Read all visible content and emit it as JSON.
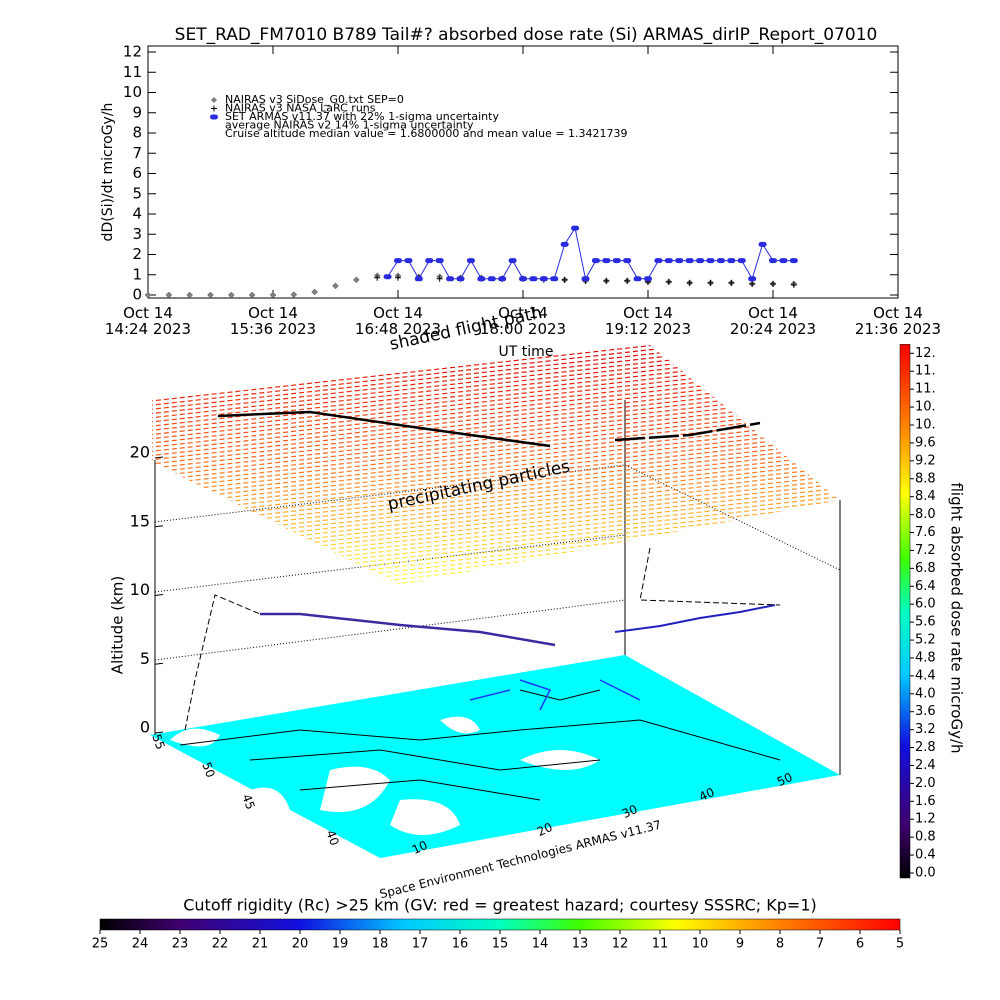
{
  "chart_data": [
    {
      "type": "line",
      "title": "SET_RAD_FM7010  B789 Tail#? absorbed dose rate (Si) ARMAS_dirIP_Report_07010",
      "ylabel": "dD(Si)/dt microGy/h",
      "xlabel": "UT time",
      "xlim": [
        14.4,
        21.6
      ],
      "xticks": [
        {
          "value": 14.4,
          "label": "Oct 14\n14:24 2023"
        },
        {
          "value": 15.6,
          "label": "Oct 14\n15:36 2023"
        },
        {
          "value": 16.8,
          "label": "Oct 14\n16:48 2023"
        },
        {
          "value": 18.0,
          "label": "Oct 14\n18:00 2023"
        },
        {
          "value": 19.2,
          "label": "Oct 14\n19:12 2023"
        },
        {
          "value": 20.4,
          "label": "Oct 14\n20:24 2023"
        },
        {
          "value": 21.6,
          "label": "Oct 14\n21:36 2023"
        }
      ],
      "ylim": [
        0,
        12
      ],
      "yticks": [
        0,
        1,
        2,
        3,
        4,
        5,
        6,
        7,
        8,
        9,
        10,
        11,
        12
      ],
      "series": [
        {
          "name": "NAIRAS v3 SiDose_G0.txt SEP=0",
          "color": "#808080",
          "marker": "diamond",
          "x": [
            14.4,
            14.6,
            14.8,
            15.0,
            15.2,
            15.4,
            15.6,
            15.8,
            16.0,
            16.2,
            16.4,
            16.6,
            16.8,
            17.0,
            17.2,
            17.4,
            17.6,
            17.8,
            18.0,
            18.2,
            18.4,
            18.6,
            18.8,
            19.0,
            19.2,
            19.4,
            19.6,
            19.8,
            20.0,
            20.2,
            20.4,
            20.6
          ],
          "values": [
            0,
            0,
            0,
            0,
            0,
            0,
            0,
            0.02,
            0.15,
            0.45,
            0.75,
            0.95,
            0.95,
            0.9,
            0.9,
            0.85,
            0.85,
            0.8,
            0.8,
            0.8,
            0.75,
            0.7,
            0.7,
            0.7,
            0.65,
            0.65,
            0.6,
            0.6,
            0.6,
            0.55,
            0.55,
            0.55
          ]
        },
        {
          "name": "NAIRAS v3 NASA LaRC runs",
          "color": "#000000",
          "marker": "plus",
          "x": [
            16.6,
            16.8,
            17.0,
            17.2,
            17.4,
            17.6,
            17.8,
            18.0,
            18.2,
            18.4,
            18.6,
            18.8,
            19.0,
            19.2,
            19.4,
            19.6,
            19.8,
            20.0,
            20.2,
            20.4,
            20.6
          ],
          "values": [
            0.85,
            0.85,
            0.85,
            0.8,
            0.8,
            0.8,
            0.8,
            0.8,
            0.75,
            0.75,
            0.7,
            0.7,
            0.7,
            0.65,
            0.65,
            0.6,
            0.6,
            0.6,
            0.55,
            0.55,
            0.5
          ]
        },
        {
          "name": "SET ARMAS v11.37 with 22% 1-sigma uncertainty",
          "color": "#2a2ae0",
          "marker": "circle",
          "x": [
            16.7,
            16.8,
            16.9,
            17.0,
            17.1,
            17.2,
            17.3,
            17.4,
            17.5,
            17.6,
            17.7,
            17.8,
            17.9,
            18.0,
            18.1,
            18.2,
            18.3,
            18.4,
            18.5,
            18.6,
            18.7,
            18.8,
            18.9,
            19.0,
            19.1,
            19.2,
            19.3,
            19.4,
            19.5,
            19.6,
            19.7,
            19.8,
            19.9,
            20.0,
            20.1,
            20.2,
            20.3,
            20.4,
            20.5,
            20.6
          ],
          "values": [
            0.9,
            1.7,
            1.7,
            0.8,
            1.7,
            1.7,
            0.8,
            0.8,
            1.7,
            0.8,
            0.8,
            0.8,
            1.7,
            0.8,
            0.8,
            0.8,
            0.8,
            2.5,
            3.3,
            0.8,
            1.7,
            1.7,
            1.7,
            1.7,
            0.8,
            0.8,
            1.7,
            1.7,
            1.7,
            1.7,
            1.7,
            1.7,
            1.7,
            1.7,
            1.7,
            0.8,
            2.5,
            1.7,
            1.7,
            1.7
          ]
        }
      ],
      "annotations": [
        "average NAIRAS v2 14% 1-sigma uncertainty",
        "Cruise altitude median value = 1.6800000 and mean value = 1.3421739"
      ]
    },
    {
      "type": "map3d",
      "zlabel": "Altitude (km)",
      "zlim": [
        0,
        20
      ],
      "zticks": [
        0,
        5,
        10,
        15,
        20
      ],
      "lat_ticks": [
        55,
        50,
        45,
        40
      ],
      "lon_ticks": [
        10,
        20,
        30,
        40,
        50
      ],
      "annotations": [
        "shaded flight path",
        "precipitating particles",
        "Space Environment Technologies ARMAS v11.37"
      ]
    },
    {
      "type": "colorbar",
      "orientation": "vertical",
      "label": "flight absorbed dose rate microGy/h",
      "lim": [
        0,
        11.8
      ],
      "ticks": [
        {
          "value": 0.0,
          "label": "0.0"
        },
        0.4,
        0.8,
        1.2,
        1.6,
        {
          "value": 2.0,
          "label": "2.0"
        },
        2.4,
        2.8,
        3.2,
        3.6,
        {
          "value": 4.0,
          "label": "4.0"
        },
        4.4,
        4.8,
        5.2,
        5.6,
        {
          "value": 6.0,
          "label": "6.0"
        },
        6.4,
        6.8,
        7.2,
        7.6,
        {
          "value": 8.0,
          "label": "8.0"
        },
        8.4,
        8.8,
        9.2,
        9.6,
        {
          "value": 10.0,
          "label": "10."
        },
        {
          "value": 10.4,
          "label": "10."
        },
        {
          "value": 10.8,
          "label": "11."
        },
        {
          "value": 11.2,
          "label": "11."
        },
        {
          "value": 11.6,
          "label": "12."
        }
      ]
    },
    {
      "type": "colorbar",
      "orientation": "horizontal",
      "label": "Cutoff rigidity (Rc) >25 km (GV: red = greatest hazard; courtesy SSSRC; Kp=1)",
      "lim": [
        25,
        5
      ],
      "ticks": [
        25,
        24,
        23,
        22,
        21,
        20,
        19,
        18,
        17,
        16,
        15,
        14,
        13,
        12,
        11,
        10,
        9,
        8,
        7,
        6,
        5
      ]
    }
  ]
}
